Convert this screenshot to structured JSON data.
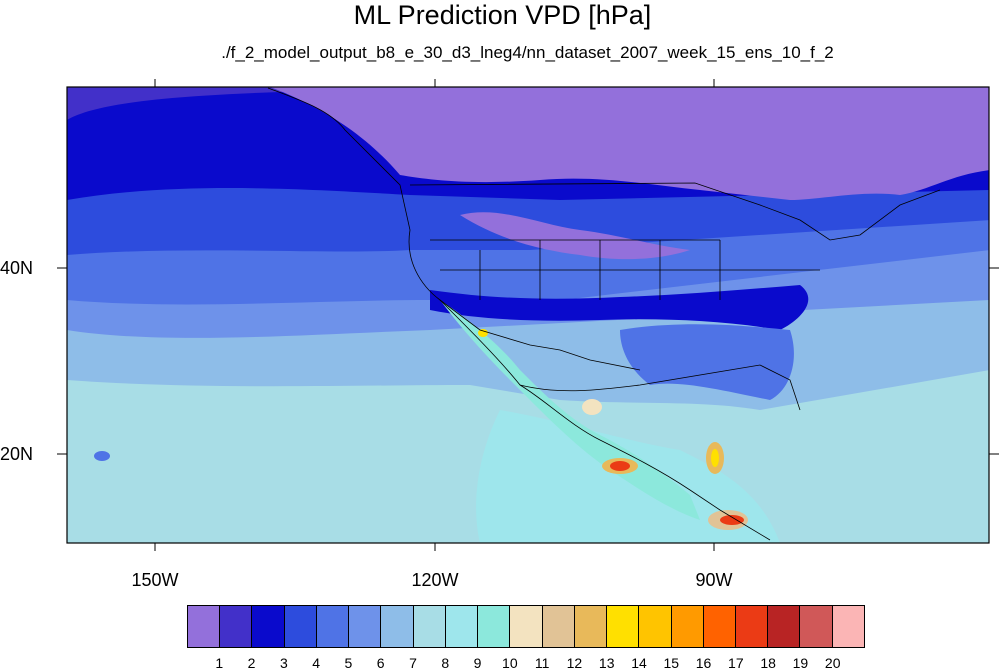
{
  "title": "ML Prediction VPD [hPa]",
  "subtitle": "./f_2_model_output_b8_e_30_d3_lneg4/nn_dataset_2007_week_15_ens_10_f_2",
  "map": {
    "projection": "cylindrical equidistant",
    "lon_labels": [
      "150W",
      "120W",
      "90W"
    ],
    "lat_labels": [
      "40N",
      "20N"
    ],
    "features": [
      "coastlines",
      "us-state-boundaries",
      "national-borders"
    ]
  },
  "colorbar": {
    "labels": [
      "1",
      "2",
      "3",
      "4",
      "5",
      "6",
      "7",
      "8",
      "9",
      "10",
      "11",
      "12",
      "13",
      "14",
      "15",
      "16",
      "17",
      "18",
      "19",
      "20"
    ],
    "colors": [
      "#9370DB",
      "#4230C9",
      "#0A0ACC",
      "#2D4CDD",
      "#4F73E6",
      "#6E92EA",
      "#8EBDE8",
      "#A8DDE6",
      "#9EE6EC",
      "#8CE8DC",
      "#F3E3C0",
      "#E1C396",
      "#E8B95A",
      "#FFE000",
      "#FFC400",
      "#FF9A00",
      "#FF6200",
      "#EB3B15",
      "#B82424",
      "#D05858",
      "#FBB5B5"
    ]
  }
}
